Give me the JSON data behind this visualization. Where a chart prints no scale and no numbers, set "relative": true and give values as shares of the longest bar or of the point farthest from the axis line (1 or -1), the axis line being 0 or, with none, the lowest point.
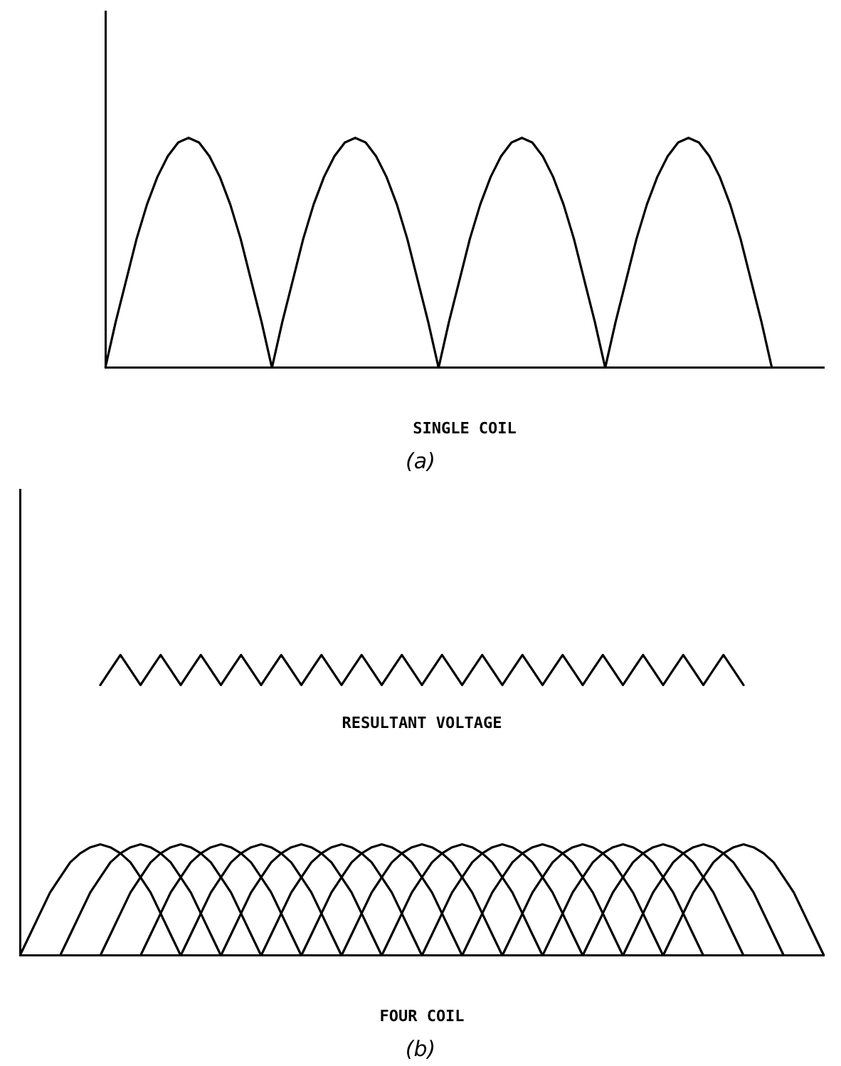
{
  "chart_data": [
    {
      "type": "line",
      "relative": true,
      "xlabel": "SINGLE COIL",
      "annotations": [
        "(a)"
      ],
      "legend": false,
      "marker": "none",
      "categories": [
        null,
        null,
        null,
        null,
        null,
        null,
        null,
        null,
        null,
        null,
        null,
        null,
        null,
        null,
        null,
        null,
        null,
        null,
        null,
        null,
        null,
        null,
        null,
        null,
        null,
        null,
        null,
        null,
        null,
        null,
        null,
        null,
        null,
        null,
        null,
        null,
        null,
        null,
        null,
        null,
        null,
        null,
        null,
        null,
        null,
        null,
        null,
        null,
        null,
        null,
        null,
        null,
        null,
        null,
        null,
        null,
        null,
        null,
        null,
        null,
        null,
        null,
        null,
        null,
        null,
        null,
        null,
        null,
        null,
        null
      ],
      "series": [
        {
          "color": "#000000",
          "values": [
            0,
            0.2,
            0.38,
            0.56,
            0.71,
            0.83,
            0.92,
            0.98,
            1,
            0.98,
            0.92,
            0.83,
            0.71,
            0.56,
            0.38,
            0.2,
            0,
            0.2,
            0.38,
            0.56,
            0.71,
            0.83,
            0.92,
            0.98,
            1,
            0.98,
            0.92,
            0.83,
            0.71,
            0.56,
            0.38,
            0.2,
            0,
            0.2,
            0.38,
            0.56,
            0.71,
            0.83,
            0.92,
            0.98,
            1,
            0.98,
            0.92,
            0.83,
            0.71,
            0.56,
            0.38,
            0.2,
            0,
            0.2,
            0.38,
            0.56,
            0.71,
            0.83,
            0.92,
            0.98,
            1,
            0.98,
            0.92,
            0.83,
            0.71,
            0.56,
            0.38,
            0.2,
            0,
            null,
            null,
            null,
            null,
            null
          ]
        }
      ]
    },
    {
      "type": "line",
      "relative": true,
      "xlabel": "FOUR COIL",
      "annotations": [
        "(b)"
      ],
      "legend": false,
      "marker": "none",
      "categories": [
        null,
        null,
        null,
        null,
        null,
        null,
        null,
        null,
        null,
        null,
        null,
        null,
        null,
        null,
        null,
        null,
        null,
        null,
        null,
        null,
        null,
        null,
        null,
        null,
        null,
        null,
        null,
        null,
        null,
        null,
        null,
        null,
        null,
        null,
        null,
        null,
        null,
        null,
        null,
        null,
        null,
        null,
        null,
        null,
        null,
        null,
        null,
        null,
        null,
        null,
        null,
        null,
        null,
        null,
        null,
        null,
        null,
        null,
        null,
        null,
        null,
        null,
        null,
        null,
        null,
        null,
        null,
        null,
        null,
        null,
        null,
        null,
        null,
        null,
        null,
        null,
        null,
        null,
        null,
        null,
        null
      ],
      "series": [
        {
          "name": "RESULTANT VOLTAGE",
          "color": "#000000",
          "values": [
            null,
            null,
            null,
            null,
            null,
            null,
            null,
            null,
            0.9,
            0.95,
            1,
            0.95,
            0.9,
            0.95,
            1,
            0.95,
            0.9,
            0.95,
            1,
            0.95,
            0.9,
            0.95,
            1,
            0.95,
            0.9,
            0.95,
            1,
            0.95,
            0.9,
            0.95,
            1,
            0.95,
            0.9,
            0.95,
            1,
            0.95,
            0.9,
            0.95,
            1,
            0.95,
            0.9,
            0.95,
            1,
            0.95,
            0.9,
            0.95,
            1,
            0.95,
            0.9,
            0.95,
            1,
            0.95,
            0.9,
            0.95,
            1,
            0.95,
            0.9,
            0.95,
            1,
            0.95,
            0.9,
            0.95,
            1,
            0.95,
            0.9,
            0.95,
            1,
            0.95,
            0.9,
            0.95,
            1,
            0.95,
            0.9,
            null,
            null,
            null,
            null,
            null,
            null,
            null,
            null
          ]
        },
        {
          "color": "#000000",
          "values": [
            0,
            0.07,
            0.14,
            0.21,
            0.26,
            0.31,
            0.34,
            0.36,
            0.37,
            0.36,
            0.34,
            0.31,
            0.26,
            0.21,
            0.14,
            0.07,
            0,
            null,
            null,
            null,
            null,
            null,
            null,
            null,
            null,
            null,
            null,
            null,
            null,
            null,
            null,
            null,
            null,
            null,
            null,
            null,
            null,
            null,
            null,
            null,
            null,
            null,
            null,
            null,
            null,
            null,
            null,
            null,
            null,
            null,
            null,
            null,
            null,
            null,
            null,
            null,
            null,
            null,
            null,
            null,
            null,
            null,
            null,
            null,
            null,
            null,
            null,
            null,
            null,
            null,
            null,
            null,
            null,
            null,
            null,
            null,
            null,
            null,
            null,
            null,
            null
          ]
        },
        {
          "color": "#000000",
          "values": [
            null,
            null,
            null,
            null,
            0,
            0.07,
            0.14,
            0.21,
            0.26,
            0.31,
            0.34,
            0.36,
            0.37,
            0.36,
            0.34,
            0.31,
            0.26,
            0.21,
            0.14,
            0.07,
            0,
            null,
            null,
            null,
            null,
            null,
            null,
            null,
            null,
            null,
            null,
            null,
            null,
            null,
            null,
            null,
            null,
            null,
            null,
            null,
            null,
            null,
            null,
            null,
            null,
            null,
            null,
            null,
            null,
            null,
            null,
            null,
            null,
            null,
            null,
            null,
            null,
            null,
            null,
            null,
            null,
            null,
            null,
            null,
            null,
            null,
            null,
            null,
            null,
            null,
            null,
            null,
            null,
            null,
            null,
            null,
            null,
            null,
            null,
            null,
            null
          ]
        },
        {
          "color": "#000000",
          "values": [
            null,
            null,
            null,
            null,
            null,
            null,
            null,
            null,
            0,
            0.07,
            0.14,
            0.21,
            0.26,
            0.31,
            0.34,
            0.36,
            0.37,
            0.36,
            0.34,
            0.31,
            0.26,
            0.21,
            0.14,
            0.07,
            0,
            null,
            null,
            null,
            null,
            null,
            null,
            null,
            null,
            null,
            null,
            null,
            null,
            null,
            null,
            null,
            null,
            null,
            null,
            null,
            null,
            null,
            null,
            null,
            null,
            null,
            null,
            null,
            null,
            null,
            null,
            null,
            null,
            null,
            null,
            null,
            null,
            null,
            null,
            null,
            null,
            null,
            null,
            null,
            null,
            null,
            null,
            null,
            null,
            null,
            null,
            null,
            null,
            null,
            null,
            null,
            null
          ]
        },
        {
          "color": "#000000",
          "values": [
            null,
            null,
            null,
            null,
            null,
            null,
            null,
            null,
            null,
            null,
            null,
            null,
            0,
            0.07,
            0.14,
            0.21,
            0.26,
            0.31,
            0.34,
            0.36,
            0.37,
            0.36,
            0.34,
            0.31,
            0.26,
            0.21,
            0.14,
            0.07,
            0,
            null,
            null,
            null,
            null,
            null,
            null,
            null,
            null,
            null,
            null,
            null,
            null,
            null,
            null,
            null,
            null,
            null,
            null,
            null,
            null,
            null,
            null,
            null,
            null,
            null,
            null,
            null,
            null,
            null,
            null,
            null,
            null,
            null,
            null,
            null,
            null,
            null,
            null,
            null,
            null,
            null,
            null,
            null,
            null,
            null,
            null,
            null,
            null,
            null,
            null,
            null,
            null
          ]
        },
        {
          "color": "#000000",
          "values": [
            null,
            null,
            null,
            null,
            null,
            null,
            null,
            null,
            null,
            null,
            null,
            null,
            null,
            null,
            null,
            null,
            0,
            0.07,
            0.14,
            0.21,
            0.26,
            0.31,
            0.34,
            0.36,
            0.37,
            0.36,
            0.34,
            0.31,
            0.26,
            0.21,
            0.14,
            0.07,
            0,
            null,
            null,
            null,
            null,
            null,
            null,
            null,
            null,
            null,
            null,
            null,
            null,
            null,
            null,
            null,
            null,
            null,
            null,
            null,
            null,
            null,
            null,
            null,
            null,
            null,
            null,
            null,
            null,
            null,
            null,
            null,
            null,
            null,
            null,
            null,
            null,
            null,
            null,
            null,
            null,
            null,
            null,
            null,
            null,
            null,
            null,
            null,
            null
          ]
        },
        {
          "color": "#000000",
          "values": [
            null,
            null,
            null,
            null,
            null,
            null,
            null,
            null,
            null,
            null,
            null,
            null,
            null,
            null,
            null,
            null,
            null,
            null,
            null,
            null,
            0,
            0.07,
            0.14,
            0.21,
            0.26,
            0.31,
            0.34,
            0.36,
            0.37,
            0.36,
            0.34,
            0.31,
            0.26,
            0.21,
            0.14,
            0.07,
            0,
            null,
            null,
            null,
            null,
            null,
            null,
            null,
            null,
            null,
            null,
            null,
            null,
            null,
            null,
            null,
            null,
            null,
            null,
            null,
            null,
            null,
            null,
            null,
            null,
            null,
            null,
            null,
            null,
            null,
            null,
            null,
            null,
            null,
            null,
            null,
            null,
            null,
            null,
            null,
            null,
            null,
            null,
            null,
            null
          ]
        },
        {
          "color": "#000000",
          "values": [
            null,
            null,
            null,
            null,
            null,
            null,
            null,
            null,
            null,
            null,
            null,
            null,
            null,
            null,
            null,
            null,
            null,
            null,
            null,
            null,
            null,
            null,
            null,
            null,
            0,
            0.07,
            0.14,
            0.21,
            0.26,
            0.31,
            0.34,
            0.36,
            0.37,
            0.36,
            0.34,
            0.31,
            0.26,
            0.21,
            0.14,
            0.07,
            0,
            null,
            null,
            null,
            null,
            null,
            null,
            null,
            null,
            null,
            null,
            null,
            null,
            null,
            null,
            null,
            null,
            null,
            null,
            null,
            null,
            null,
            null,
            null,
            null,
            null,
            null,
            null,
            null,
            null,
            null,
            null,
            null,
            null,
            null,
            null,
            null,
            null,
            null,
            null,
            null
          ]
        },
        {
          "color": "#000000",
          "values": [
            null,
            null,
            null,
            null,
            null,
            null,
            null,
            null,
            null,
            null,
            null,
            null,
            null,
            null,
            null,
            null,
            null,
            null,
            null,
            null,
            null,
            null,
            null,
            null,
            null,
            null,
            null,
            null,
            0,
            0.07,
            0.14,
            0.21,
            0.26,
            0.31,
            0.34,
            0.36,
            0.37,
            0.36,
            0.34,
            0.31,
            0.26,
            0.21,
            0.14,
            0.07,
            0,
            null,
            null,
            null,
            null,
            null,
            null,
            null,
            null,
            null,
            null,
            null,
            null,
            null,
            null,
            null,
            null,
            null,
            null,
            null,
            null,
            null,
            null,
            null,
            null,
            null,
            null,
            null,
            null,
            null,
            null,
            null,
            null,
            null,
            null,
            null,
            null
          ]
        },
        {
          "color": "#000000",
          "values": [
            null,
            null,
            null,
            null,
            null,
            null,
            null,
            null,
            null,
            null,
            null,
            null,
            null,
            null,
            null,
            null,
            null,
            null,
            null,
            null,
            null,
            null,
            null,
            null,
            null,
            null,
            null,
            null,
            null,
            null,
            null,
            null,
            0,
            0.07,
            0.14,
            0.21,
            0.26,
            0.31,
            0.34,
            0.36,
            0.37,
            0.36,
            0.34,
            0.31,
            0.26,
            0.21,
            0.14,
            0.07,
            0,
            null,
            null,
            null,
            null,
            null,
            null,
            null,
            null,
            null,
            null,
            null,
            null,
            null,
            null,
            null,
            null,
            null,
            null,
            null,
            null,
            null,
            null,
            null,
            null,
            null,
            null,
            null,
            null,
            null,
            null,
            null,
            null
          ]
        },
        {
          "color": "#000000",
          "values": [
            null,
            null,
            null,
            null,
            null,
            null,
            null,
            null,
            null,
            null,
            null,
            null,
            null,
            null,
            null,
            null,
            null,
            null,
            null,
            null,
            null,
            null,
            null,
            null,
            null,
            null,
            null,
            null,
            null,
            null,
            null,
            null,
            null,
            null,
            null,
            null,
            0,
            0.07,
            0.14,
            0.21,
            0.26,
            0.31,
            0.34,
            0.36,
            0.37,
            0.36,
            0.34,
            0.31,
            0.26,
            0.21,
            0.14,
            0.07,
            0,
            null,
            null,
            null,
            null,
            null,
            null,
            null,
            null,
            null,
            null,
            null,
            null,
            null,
            null,
            null,
            null,
            null,
            null,
            null,
            null,
            null,
            null,
            null,
            null,
            null,
            null,
            null,
            null
          ]
        },
        {
          "color": "#000000",
          "values": [
            null,
            null,
            null,
            null,
            null,
            null,
            null,
            null,
            null,
            null,
            null,
            null,
            null,
            null,
            null,
            null,
            null,
            null,
            null,
            null,
            null,
            null,
            null,
            null,
            null,
            null,
            null,
            null,
            null,
            null,
            null,
            null,
            null,
            null,
            null,
            null,
            null,
            null,
            null,
            null,
            0,
            0.07,
            0.14,
            0.21,
            0.26,
            0.31,
            0.34,
            0.36,
            0.37,
            0.36,
            0.34,
            0.31,
            0.26,
            0.21,
            0.14,
            0.07,
            0,
            null,
            null,
            null,
            null,
            null,
            null,
            null,
            null,
            null,
            null,
            null,
            null,
            null,
            null,
            null,
            null,
            null,
            null,
            null,
            null,
            null,
            null,
            null,
            null
          ]
        },
        {
          "color": "#000000",
          "values": [
            null,
            null,
            null,
            null,
            null,
            null,
            null,
            null,
            null,
            null,
            null,
            null,
            null,
            null,
            null,
            null,
            null,
            null,
            null,
            null,
            null,
            null,
            null,
            null,
            null,
            null,
            null,
            null,
            null,
            null,
            null,
            null,
            null,
            null,
            null,
            null,
            null,
            null,
            null,
            null,
            null,
            null,
            null,
            null,
            0,
            0.07,
            0.14,
            0.21,
            0.26,
            0.31,
            0.34,
            0.36,
            0.37,
            0.36,
            0.34,
            0.31,
            0.26,
            0.21,
            0.14,
            0.07,
            0,
            null,
            null,
            null,
            null,
            null,
            null,
            null,
            null,
            null,
            null,
            null,
            null,
            null,
            null,
            null,
            null,
            null,
            null,
            null,
            null
          ]
        },
        {
          "color": "#000000",
          "values": [
            null,
            null,
            null,
            null,
            null,
            null,
            null,
            null,
            null,
            null,
            null,
            null,
            null,
            null,
            null,
            null,
            null,
            null,
            null,
            null,
            null,
            null,
            null,
            null,
            null,
            null,
            null,
            null,
            null,
            null,
            null,
            null,
            null,
            null,
            null,
            null,
            null,
            null,
            null,
            null,
            null,
            null,
            null,
            null,
            null,
            null,
            null,
            null,
            0,
            0.07,
            0.14,
            0.21,
            0.26,
            0.31,
            0.34,
            0.36,
            0.37,
            0.36,
            0.34,
            0.31,
            0.26,
            0.21,
            0.14,
            0.07,
            0,
            null,
            null,
            null,
            null,
            null,
            null,
            null,
            null,
            null,
            null,
            null,
            null,
            null,
            null,
            null,
            null
          ]
        },
        {
          "color": "#000000",
          "values": [
            null,
            null,
            null,
            null,
            null,
            null,
            null,
            null,
            null,
            null,
            null,
            null,
            null,
            null,
            null,
            null,
            null,
            null,
            null,
            null,
            null,
            null,
            null,
            null,
            null,
            null,
            null,
            null,
            null,
            null,
            null,
            null,
            null,
            null,
            null,
            null,
            null,
            null,
            null,
            null,
            null,
            null,
            null,
            null,
            null,
            null,
            null,
            null,
            null,
            null,
            null,
            null,
            0,
            0.07,
            0.14,
            0.21,
            0.26,
            0.31,
            0.34,
            0.36,
            0.37,
            0.36,
            0.34,
            0.31,
            0.26,
            0.21,
            0.14,
            0.07,
            0,
            null,
            null,
            null,
            null,
            null,
            null,
            null,
            null,
            null,
            null,
            null,
            null
          ]
        },
        {
          "color": "#000000",
          "values": [
            null,
            null,
            null,
            null,
            null,
            null,
            null,
            null,
            null,
            null,
            null,
            null,
            null,
            null,
            null,
            null,
            null,
            null,
            null,
            null,
            null,
            null,
            null,
            null,
            null,
            null,
            null,
            null,
            null,
            null,
            null,
            null,
            null,
            null,
            null,
            null,
            null,
            null,
            null,
            null,
            null,
            null,
            null,
            null,
            null,
            null,
            null,
            null,
            null,
            null,
            null,
            null,
            null,
            null,
            null,
            null,
            0,
            0.07,
            0.14,
            0.21,
            0.26,
            0.31,
            0.34,
            0.36,
            0.37,
            0.36,
            0.34,
            0.31,
            0.26,
            0.21,
            0.14,
            0.07,
            0,
            null,
            null,
            null,
            null,
            null,
            null,
            null,
            null
          ]
        },
        {
          "color": "#000000",
          "values": [
            null,
            null,
            null,
            null,
            null,
            null,
            null,
            null,
            null,
            null,
            null,
            null,
            null,
            null,
            null,
            null,
            null,
            null,
            null,
            null,
            null,
            null,
            null,
            null,
            null,
            null,
            null,
            null,
            null,
            null,
            null,
            null,
            null,
            null,
            null,
            null,
            null,
            null,
            null,
            null,
            null,
            null,
            null,
            null,
            null,
            null,
            null,
            null,
            null,
            null,
            null,
            null,
            null,
            null,
            null,
            null,
            null,
            null,
            null,
            null,
            0,
            0.07,
            0.14,
            0.21,
            0.26,
            0.31,
            0.34,
            0.36,
            0.37,
            0.36,
            0.34,
            0.31,
            0.26,
            0.21,
            0.14,
            0.07,
            0,
            null,
            null,
            null,
            null
          ]
        },
        {
          "color": "#000000",
          "values": [
            null,
            null,
            null,
            null,
            null,
            null,
            null,
            null,
            null,
            null,
            null,
            null,
            null,
            null,
            null,
            null,
            null,
            null,
            null,
            null,
            null,
            null,
            null,
            null,
            null,
            null,
            null,
            null,
            null,
            null,
            null,
            null,
            null,
            null,
            null,
            null,
            null,
            null,
            null,
            null,
            null,
            null,
            null,
            null,
            null,
            null,
            null,
            null,
            null,
            null,
            null,
            null,
            null,
            null,
            null,
            null,
            null,
            null,
            null,
            null,
            null,
            null,
            null,
            null,
            0,
            0.07,
            0.14,
            0.21,
            0.26,
            0.31,
            0.34,
            0.36,
            0.37,
            0.36,
            0.34,
            0.31,
            0.26,
            0.21,
            0.14,
            0.07,
            0
          ]
        }
      ]
    }
  ]
}
